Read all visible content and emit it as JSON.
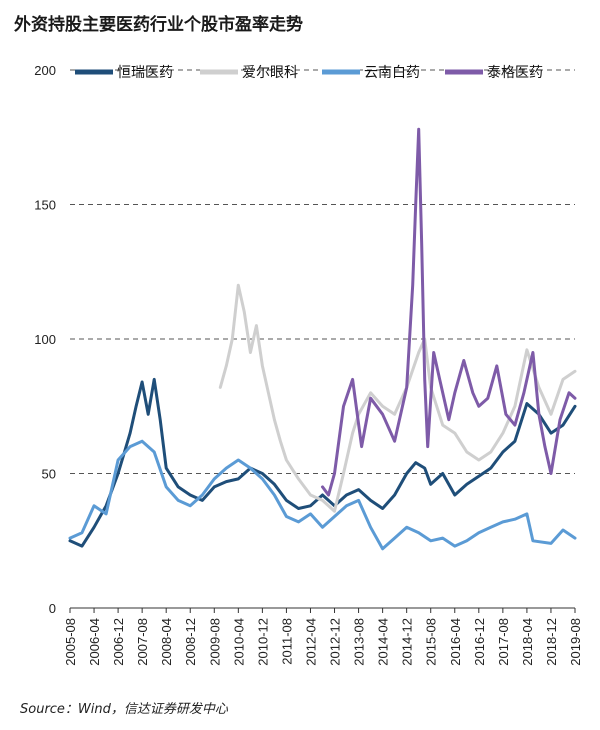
{
  "title": "外资持股主要医药行业个股市盈率走势",
  "source": "Source：Wind，信达证券研发中心",
  "chart_data": {
    "type": "line",
    "title": "外资持股主要医药行业个股市盈率走势",
    "ylim": [
      0,
      200
    ],
    "yticks": [
      0,
      50,
      100,
      150,
      200
    ],
    "grid": "horizontal dashed",
    "legend_position": "top",
    "x_tick_labels": [
      "2005-08",
      "2006-04",
      "2006-12",
      "2007-08",
      "2008-04",
      "2008-12",
      "2009-08",
      "2010-04",
      "2010-12",
      "2011-08",
      "2012-04",
      "2012-12",
      "2013-08",
      "2014-04",
      "2014-12",
      "2015-08",
      "2016-04",
      "2016-12",
      "2017-08",
      "2018-04",
      "2018-12",
      "2019-08"
    ],
    "series": [
      {
        "name": "恒瑞医药",
        "color": "#1f4e79",
        "points": [
          [
            "2005-08",
            25
          ],
          [
            "2005-12",
            23
          ],
          [
            "2006-04",
            30
          ],
          [
            "2006-08",
            38
          ],
          [
            "2006-12",
            50
          ],
          [
            "2007-04",
            65
          ],
          [
            "2007-06",
            75
          ],
          [
            "2007-08",
            84
          ],
          [
            "2007-10",
            72
          ],
          [
            "2007-12",
            85
          ],
          [
            "2008-02",
            70
          ],
          [
            "2008-04",
            52
          ],
          [
            "2008-08",
            45
          ],
          [
            "2008-12",
            42
          ],
          [
            "2009-04",
            40
          ],
          [
            "2009-08",
            45
          ],
          [
            "2009-12",
            47
          ],
          [
            "2010-04",
            48
          ],
          [
            "2010-08",
            52
          ],
          [
            "2010-12",
            50
          ],
          [
            "2011-04",
            46
          ],
          [
            "2011-08",
            40
          ],
          [
            "2011-12",
            37
          ],
          [
            "2012-04",
            38
          ],
          [
            "2012-08",
            42
          ],
          [
            "2012-12",
            38
          ],
          [
            "2013-04",
            42
          ],
          [
            "2013-08",
            44
          ],
          [
            "2013-12",
            40
          ],
          [
            "2014-04",
            37
          ],
          [
            "2014-08",
            42
          ],
          [
            "2014-12",
            50
          ],
          [
            "2015-03",
            54
          ],
          [
            "2015-06",
            52
          ],
          [
            "2015-08",
            46
          ],
          [
            "2015-12",
            50
          ],
          [
            "2016-04",
            42
          ],
          [
            "2016-08",
            46
          ],
          [
            "2016-12",
            49
          ],
          [
            "2017-04",
            52
          ],
          [
            "2017-08",
            58
          ],
          [
            "2017-12",
            62
          ],
          [
            "2018-04",
            76
          ],
          [
            "2018-08",
            72
          ],
          [
            "2018-12",
            65
          ],
          [
            "2019-04",
            68
          ],
          [
            "2019-08",
            75
          ]
        ]
      },
      {
        "name": "爱尔眼科",
        "color": "#cfcfcf",
        "points": [
          [
            "2009-10",
            82
          ],
          [
            "2009-12",
            90
          ],
          [
            "2010-02",
            100
          ],
          [
            "2010-04",
            120
          ],
          [
            "2010-06",
            110
          ],
          [
            "2010-08",
            95
          ],
          [
            "2010-10",
            105
          ],
          [
            "2010-12",
            90
          ],
          [
            "2011-02",
            80
          ],
          [
            "2011-04",
            70
          ],
          [
            "2011-06",
            62
          ],
          [
            "2011-08",
            55
          ],
          [
            "2011-12",
            48
          ],
          [
            "2012-04",
            42
          ],
          [
            "2012-08",
            40
          ],
          [
            "2012-12",
            36
          ],
          [
            "2013-03",
            50
          ],
          [
            "2013-06",
            65
          ],
          [
            "2013-08",
            72
          ],
          [
            "2013-12",
            80
          ],
          [
            "2014-04",
            75
          ],
          [
            "2014-08",
            72
          ],
          [
            "2014-12",
            82
          ],
          [
            "2015-04",
            95
          ],
          [
            "2015-06",
            100
          ],
          [
            "2015-08",
            82
          ],
          [
            "2015-12",
            68
          ],
          [
            "2016-04",
            65
          ],
          [
            "2016-08",
            58
          ],
          [
            "2016-12",
            55
          ],
          [
            "2017-04",
            58
          ],
          [
            "2017-08",
            65
          ],
          [
            "2017-12",
            75
          ],
          [
            "2018-04",
            96
          ],
          [
            "2018-08",
            82
          ],
          [
            "2018-12",
            72
          ],
          [
            "2019-04",
            85
          ],
          [
            "2019-08",
            88
          ]
        ]
      },
      {
        "name": "云南白药",
        "color": "#5b9bd5",
        "points": [
          [
            "2005-08",
            26
          ],
          [
            "2005-12",
            28
          ],
          [
            "2006-04",
            38
          ],
          [
            "2006-08",
            35
          ],
          [
            "2006-12",
            55
          ],
          [
            "2007-04",
            60
          ],
          [
            "2007-08",
            62
          ],
          [
            "2007-12",
            58
          ],
          [
            "2008-04",
            45
          ],
          [
            "2008-08",
            40
          ],
          [
            "2008-12",
            38
          ],
          [
            "2009-04",
            42
          ],
          [
            "2009-08",
            48
          ],
          [
            "2009-12",
            52
          ],
          [
            "2010-04",
            55
          ],
          [
            "2010-08",
            52
          ],
          [
            "2010-12",
            48
          ],
          [
            "2011-04",
            42
          ],
          [
            "2011-08",
            34
          ],
          [
            "2011-12",
            32
          ],
          [
            "2012-04",
            35
          ],
          [
            "2012-08",
            30
          ],
          [
            "2012-12",
            34
          ],
          [
            "2013-04",
            38
          ],
          [
            "2013-08",
            40
          ],
          [
            "2013-12",
            30
          ],
          [
            "2014-04",
            22
          ],
          [
            "2014-08",
            26
          ],
          [
            "2014-12",
            30
          ],
          [
            "2015-04",
            28
          ],
          [
            "2015-08",
            25
          ],
          [
            "2015-12",
            26
          ],
          [
            "2016-04",
            23
          ],
          [
            "2016-08",
            25
          ],
          [
            "2016-12",
            28
          ],
          [
            "2017-04",
            30
          ],
          [
            "2017-08",
            32
          ],
          [
            "2017-12",
            33
          ],
          [
            "2018-04",
            35
          ],
          [
            "2018-06",
            25
          ],
          [
            "2018-12",
            24
          ],
          [
            "2019-04",
            29
          ],
          [
            "2019-08",
            26
          ]
        ]
      },
      {
        "name": "泰格医药",
        "color": "#7e5ba8",
        "points": [
          [
            "2012-08",
            45
          ],
          [
            "2012-10",
            42
          ],
          [
            "2012-12",
            50
          ],
          [
            "2013-03",
            75
          ],
          [
            "2013-06",
            85
          ],
          [
            "2013-09",
            60
          ],
          [
            "2013-12",
            78
          ],
          [
            "2014-04",
            72
          ],
          [
            "2014-08",
            62
          ],
          [
            "2014-12",
            82
          ],
          [
            "2015-02",
            120
          ],
          [
            "2015-03",
            150
          ],
          [
            "2015-04",
            178
          ],
          [
            "2015-05",
            135
          ],
          [
            "2015-06",
            85
          ],
          [
            "2015-07",
            60
          ],
          [
            "2015-09",
            95
          ],
          [
            "2015-11",
            85
          ],
          [
            "2016-02",
            70
          ],
          [
            "2016-04",
            80
          ],
          [
            "2016-07",
            92
          ],
          [
            "2016-10",
            80
          ],
          [
            "2016-12",
            75
          ],
          [
            "2017-03",
            78
          ],
          [
            "2017-06",
            90
          ],
          [
            "2017-09",
            72
          ],
          [
            "2017-12",
            68
          ],
          [
            "2018-03",
            80
          ],
          [
            "2018-06",
            95
          ],
          [
            "2018-08",
            72
          ],
          [
            "2018-10",
            60
          ],
          [
            "2018-12",
            50
          ],
          [
            "2019-03",
            70
          ],
          [
            "2019-06",
            80
          ],
          [
            "2019-08",
            78
          ]
        ]
      }
    ]
  }
}
